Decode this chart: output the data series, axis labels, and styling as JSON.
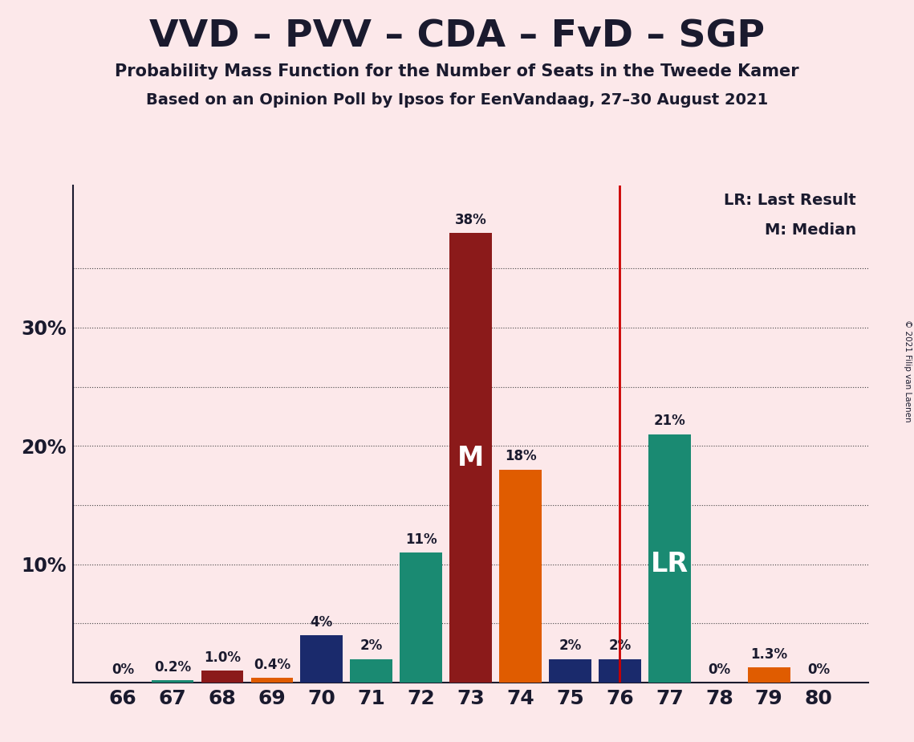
{
  "title": "VVD – PVV – CDA – FvD – SGP",
  "subtitle1": "Probability Mass Function for the Number of Seats in the Tweede Kamer",
  "subtitle2": "Based on an Opinion Poll by Ipsos for EenVandaag, 27–30 August 2021",
  "copyright": "© 2021 Filip van Laenen",
  "legend_lr": "LR: Last Result",
  "legend_m": "M: Median",
  "background_color": "#fce8ea",
  "bar_color_teal": "#1a8a72",
  "bar_color_darkred": "#8b1a1a",
  "bar_color_orange": "#e05c00",
  "bar_color_navy": "#1a2a6c",
  "vline_color": "#cc0000",
  "grid_color": "#444444",
  "text_color": "#1a1a2e",
  "seats": [
    66,
    67,
    68,
    69,
    70,
    71,
    72,
    73,
    74,
    75,
    76,
    77,
    78,
    79,
    80
  ],
  "probabilities": [
    0.0,
    0.2,
    1.0,
    0.4,
    4.0,
    2.0,
    11.0,
    38.0,
    18.0,
    2.0,
    2.0,
    21.0,
    0.0,
    1.3,
    0.0
  ],
  "bar_colors": [
    "#1a8a72",
    "#1a8a72",
    "#8b1a1a",
    "#e05c00",
    "#1a2a6c",
    "#1a8a72",
    "#1a8a72",
    "#8b1a1a",
    "#e05c00",
    "#1a2a6c",
    "#1a2a6c",
    "#1a8a72",
    "#1a8a72",
    "#e05c00",
    "#1a8a72"
  ],
  "labels": [
    "0%",
    "0.2%",
    "1.0%",
    "0.4%",
    "4%",
    "2%",
    "11%",
    "38%",
    "18%",
    "2%",
    "2%",
    "21%",
    "0%",
    "1.3%",
    "0%"
  ],
  "median_seat": 73,
  "lr_seat": 76,
  "lr_bar_seat": 77,
  "ylim_max": 42,
  "ytick_positions": [
    10,
    20,
    30
  ],
  "ytick_labels": [
    "10%",
    "20%",
    "30%"
  ],
  "all_gridlines": [
    5,
    10,
    15,
    20,
    25,
    30,
    35
  ],
  "xlim": [
    65.0,
    81.0
  ]
}
